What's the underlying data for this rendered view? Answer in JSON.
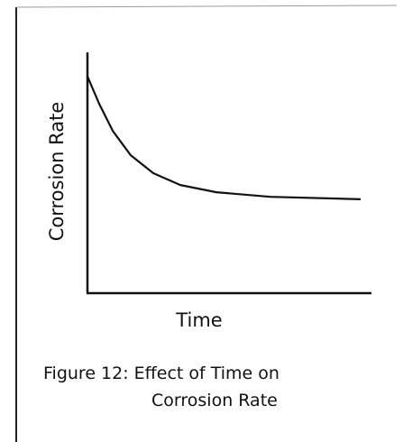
{
  "chart_data": {
    "type": "line",
    "title": [
      "Figure 12: Effect of Time on",
      "Corrosion Rate"
    ],
    "x_label": "Time",
    "y_label": "Corrosion Rate",
    "xlim": [
      0,
      10
    ],
    "ylim": [
      0,
      10
    ],
    "x": [
      0,
      0.41,
      0.89,
      1.52,
      2.32,
      3.27,
      4.54,
      6.44,
      9.62
    ],
    "series": [
      {
        "color": "#111111",
        "values": [
          9.0,
          7.87,
          6.74,
          5.73,
          4.98,
          4.49,
          4.19,
          4.0,
          3.9
        ]
      }
    ]
  }
}
